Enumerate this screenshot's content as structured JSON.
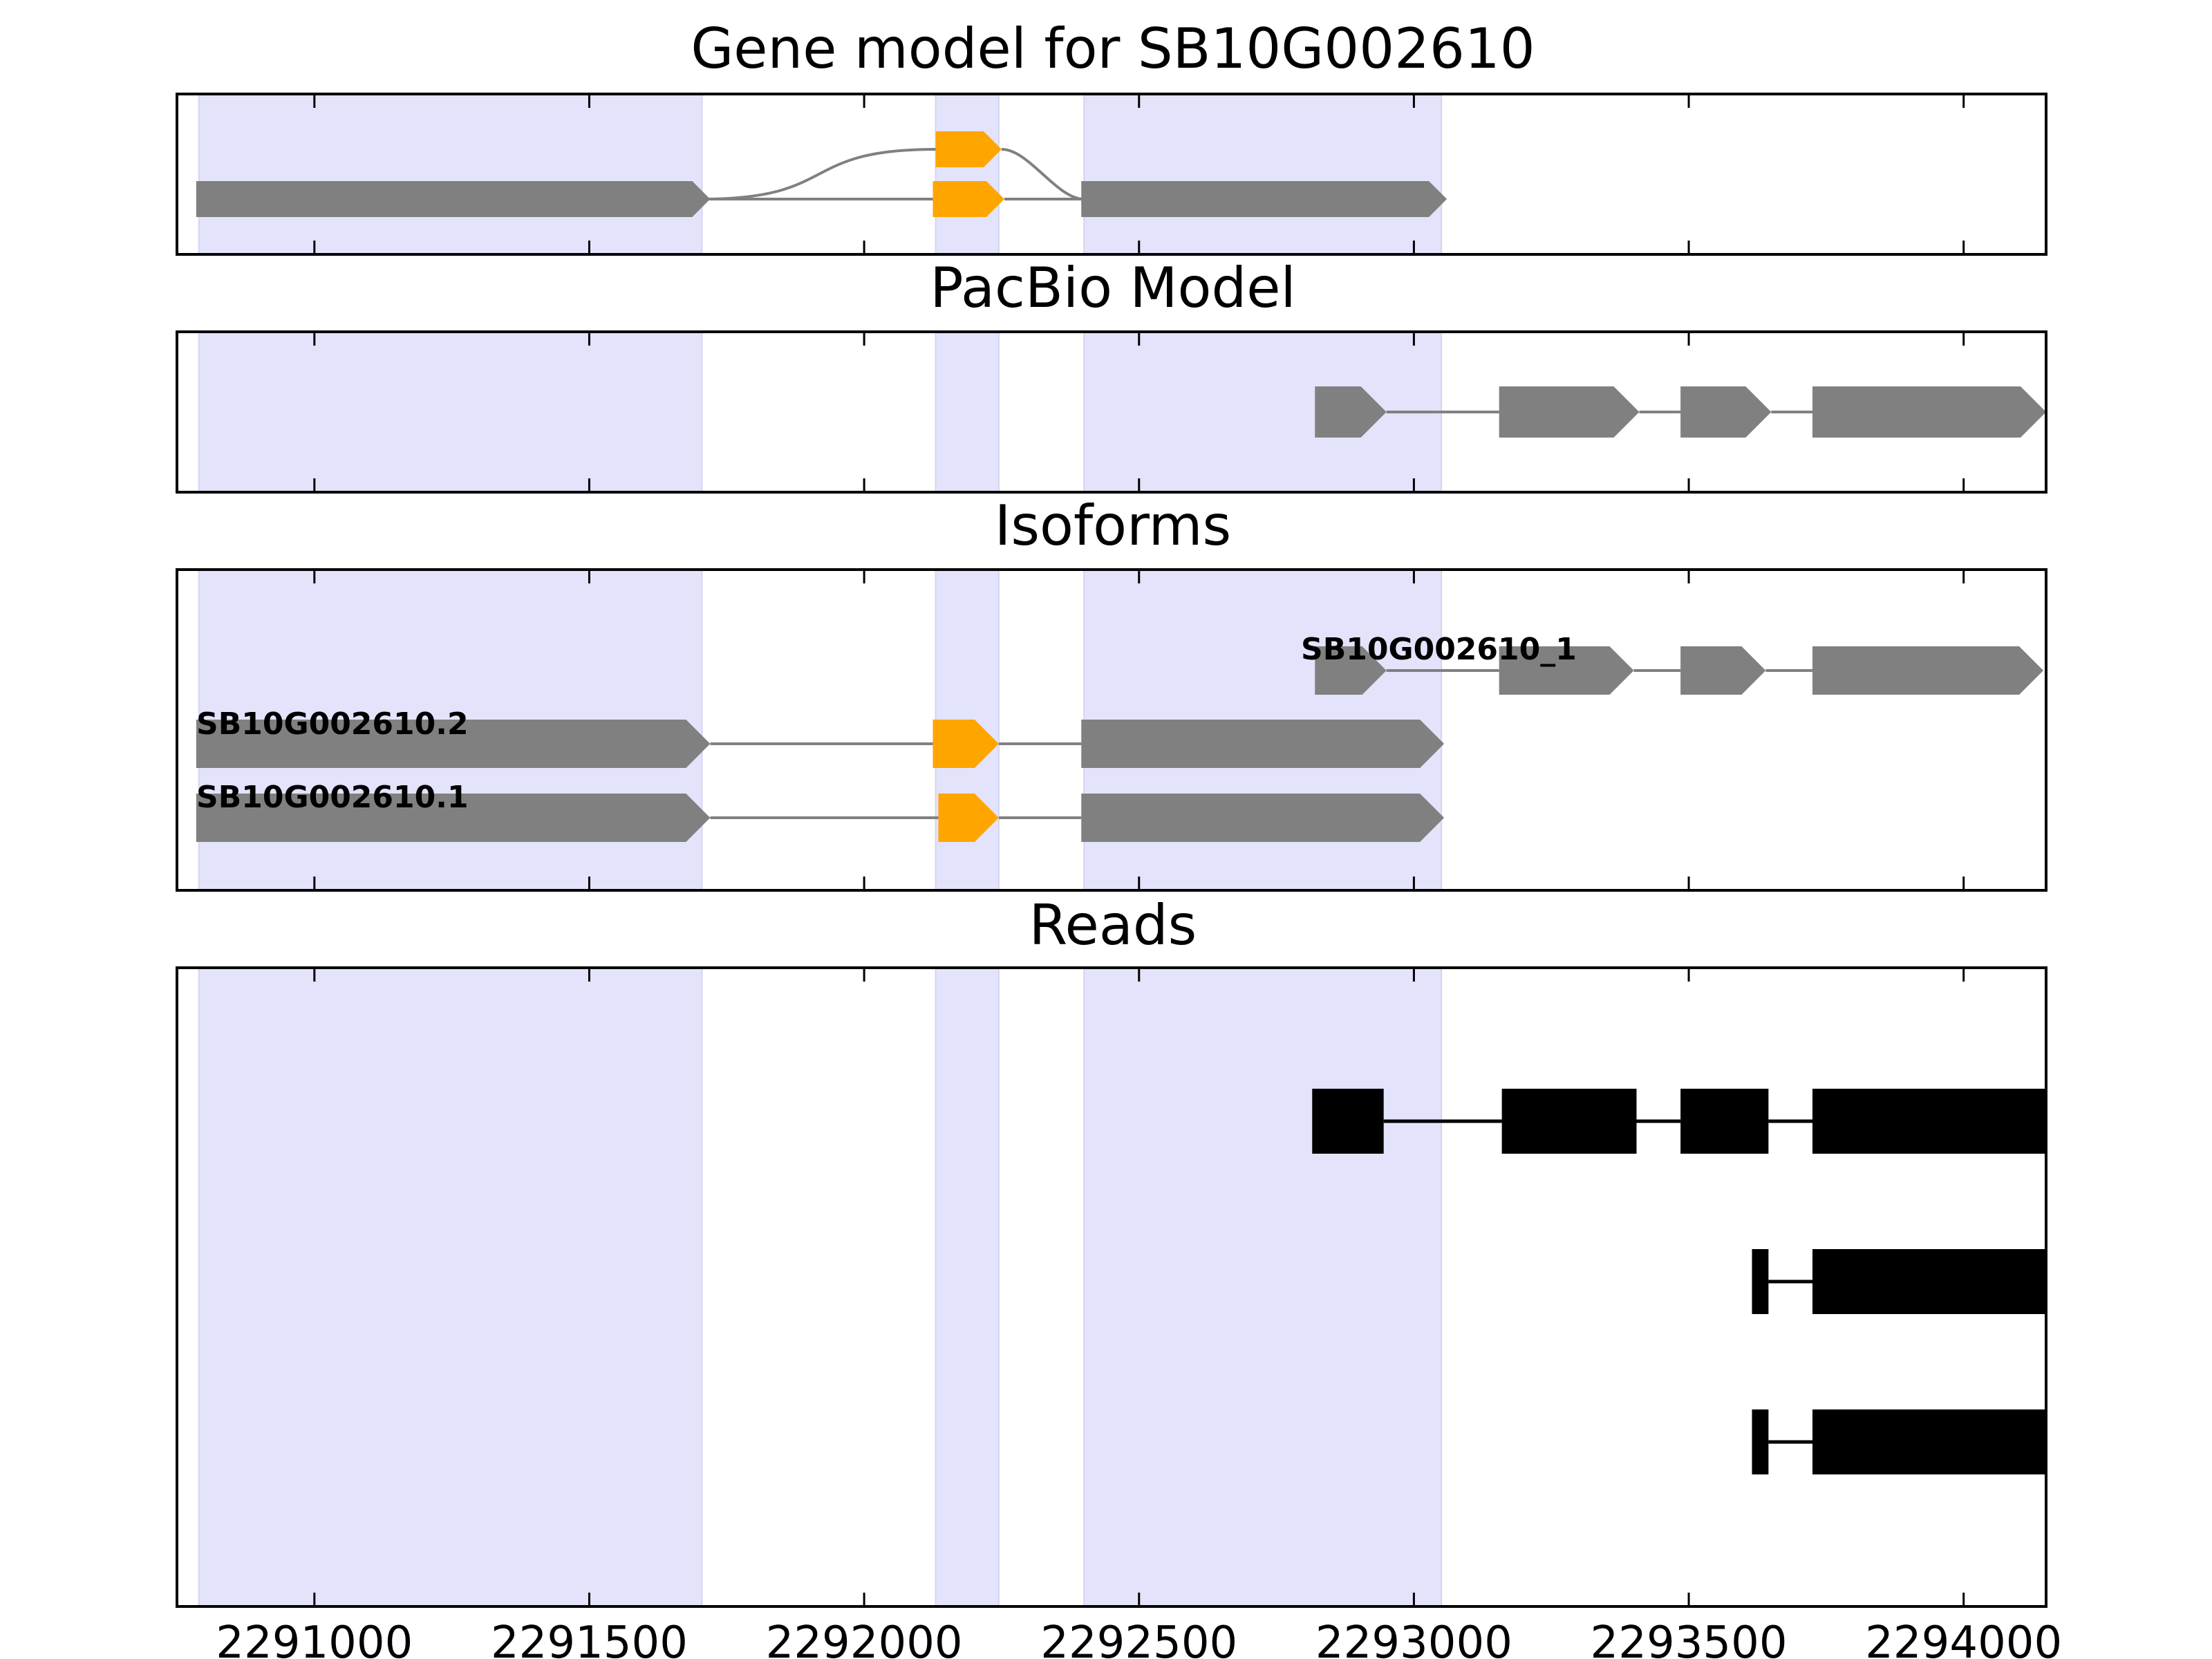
{
  "colors": {
    "gene": "#808080",
    "cds_highlight": "#FFA500",
    "exon_band": "#E3E3FC",
    "read": "#000000",
    "intron": "#808080",
    "frame": "#000000"
  },
  "x_axis": {
    "range": [
      2290750,
      2294150
    ],
    "ticks": [
      2291000,
      2291500,
      2292000,
      2292500,
      2293000,
      2293500,
      2294000
    ],
    "tick_labels": [
      "2291000",
      "2291500",
      "2292000",
      "2292500",
      "2293000",
      "2293500",
      "2294000"
    ]
  },
  "exon_bands": [
    [
      2290790,
      2291705
    ],
    [
      2292130,
      2292245
    ],
    [
      2292400,
      2293050
    ]
  ],
  "panels": [
    {
      "id": "gene-model",
      "title": "Gene model for SB10G002610",
      "transcripts": [
        {
          "label": "",
          "lane": 0,
          "exons": [
            {
              "start": 2292130,
              "end": 2292250,
              "color": "cds_highlight"
            }
          ],
          "curve": {
            "from": 2291705,
            "to": 2292400,
            "lane_from": 1,
            "lane_to": 1
          }
        },
        {
          "label": "",
          "lane": 1,
          "exons": [
            {
              "start": 2290785,
              "end": 2291720,
              "color": "gene"
            },
            {
              "start": 2292125,
              "end": 2292255,
              "color": "cds_highlight"
            },
            {
              "start": 2292395,
              "end": 2293060,
              "color": "gene"
            }
          ]
        }
      ]
    },
    {
      "id": "pacbio-model",
      "title": "PacBio Model",
      "transcripts": [
        {
          "label": "",
          "lane": 0,
          "exons": [
            {
              "start": 2292820,
              "end": 2292950,
              "color": "gene"
            },
            {
              "start": 2293155,
              "end": 2293410,
              "color": "gene"
            },
            {
              "start": 2293485,
              "end": 2293650,
              "color": "gene"
            },
            {
              "start": 2293725,
              "end": 2294150,
              "color": "gene"
            }
          ]
        }
      ]
    },
    {
      "id": "isoforms",
      "title": "Isoforms",
      "transcripts": [
        {
          "label": "SB10G002610_1",
          "lane": 0,
          "exons": [
            {
              "start": 2292820,
              "end": 2292950,
              "color": "gene"
            },
            {
              "start": 2293155,
              "end": 2293400,
              "color": "gene"
            },
            {
              "start": 2293485,
              "end": 2293640,
              "color": "gene"
            },
            {
              "start": 2293725,
              "end": 2294145,
              "color": "gene"
            }
          ]
        },
        {
          "label": "SB10G002610.2",
          "lane": 1,
          "exons": [
            {
              "start": 2290785,
              "end": 2291720,
              "color": "gene"
            },
            {
              "start": 2292125,
              "end": 2292245,
              "color": "cds_highlight"
            },
            {
              "start": 2292395,
              "end": 2293055,
              "color": "gene"
            }
          ]
        },
        {
          "label": "SB10G002610.1",
          "lane": 2,
          "exons": [
            {
              "start": 2290785,
              "end": 2291720,
              "color": "gene"
            },
            {
              "start": 2292135,
              "end": 2292245,
              "color": "cds_highlight"
            },
            {
              "start": 2292395,
              "end": 2293055,
              "color": "gene"
            }
          ]
        }
      ]
    },
    {
      "id": "reads",
      "title": "Reads",
      "reads": [
        {
          "blocks": [
            [
              2292815,
              2292945
            ],
            [
              2293160,
              2293405
            ],
            [
              2293485,
              2293645
            ],
            [
              2293725,
              2294150
            ]
          ]
        },
        {
          "blocks": [
            [
              2293615,
              2293645
            ],
            [
              2293725,
              2294150
            ]
          ]
        },
        {
          "blocks": [
            [
              2293615,
              2293645
            ],
            [
              2293725,
              2294150
            ]
          ]
        }
      ]
    }
  ]
}
